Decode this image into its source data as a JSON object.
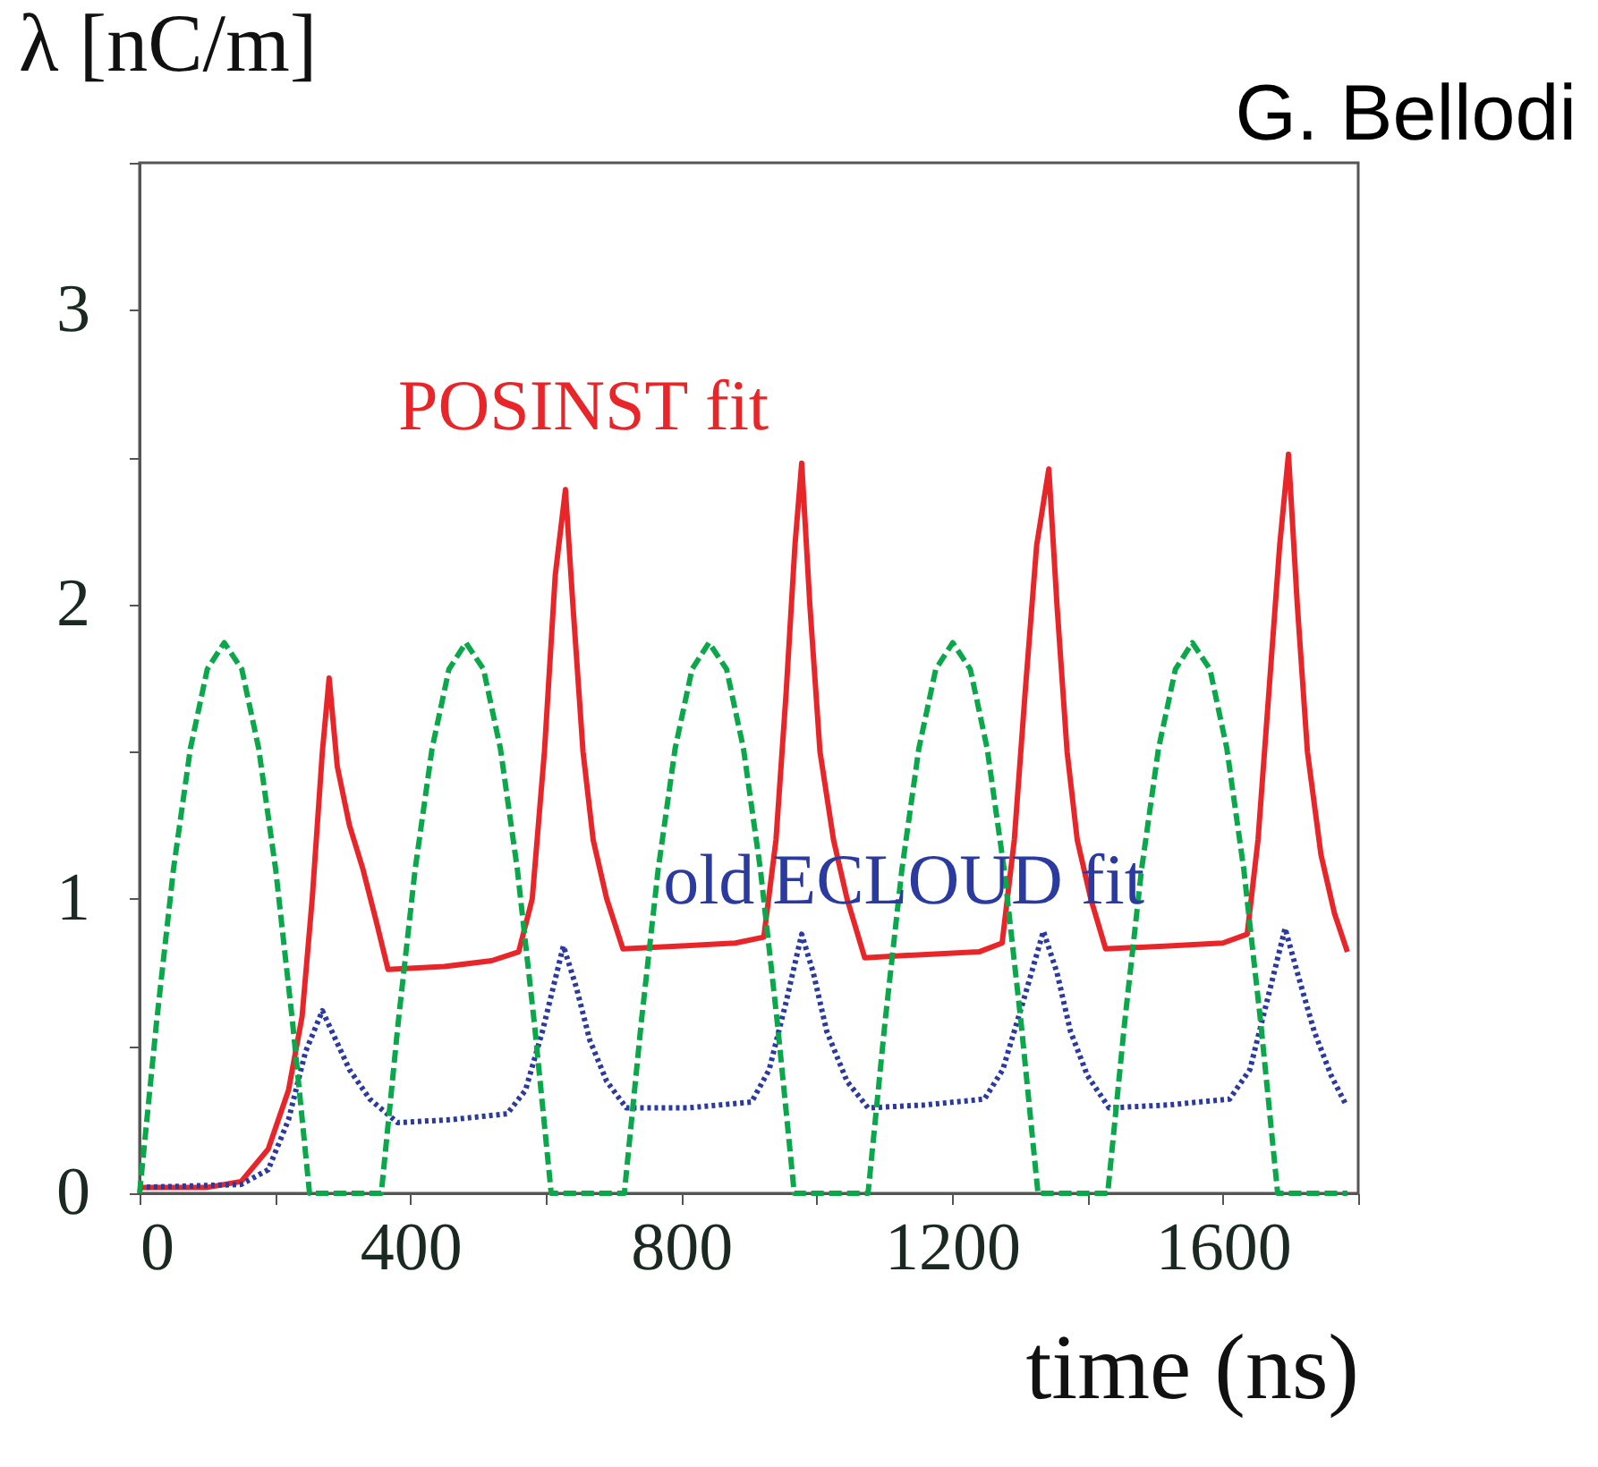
{
  "chart_data": {
    "type": "line",
    "xlabel": "time (ns)",
    "ylabel": "λ [nC/m]",
    "annotations": [
      "G. Bellodi"
    ],
    "xlim": [
      0,
      1800
    ],
    "ylim": [
      0,
      3.5
    ],
    "xticks": [
      0,
      {
        "value": 200,
        "label": null
      },
      400,
      {
        "value": 600,
        "label": null
      },
      800,
      {
        "value": 1000,
        "label": null
      },
      1200,
      {
        "value": 1400,
        "label": null
      },
      1600,
      {
        "value": 1800,
        "label": null
      }
    ],
    "yticks": [
      0,
      {
        "value": 0.5,
        "label": null
      },
      1,
      {
        "value": 1.5,
        "label": null
      },
      2,
      {
        "value": 2.5,
        "label": null
      },
      3,
      {
        "value": 3.5,
        "label": null
      }
    ],
    "grid": false,
    "marker": "none",
    "series": [
      {
        "name": "POSINST fit",
        "color": "#e8262a",
        "line_style": "solid",
        "x": [
          0,
          100,
          150,
          190,
          220,
          240,
          255,
          270,
          280,
          292,
          310,
          330,
          350,
          367,
          450,
          520,
          560,
          580,
          598,
          614,
          629,
          640,
          655,
          670,
          690,
          714,
          800,
          880,
          922,
          940,
          955,
          968,
          978,
          990,
          1005,
          1025,
          1045,
          1071,
          1150,
          1240,
          1274,
          1292,
          1308,
          1325,
          1343,
          1355,
          1370,
          1385,
          1405,
          1427,
          1520,
          1600,
          1636,
          1652,
          1668,
          1684,
          1697,
          1710,
          1725,
          1745,
          1765,
          1784
        ],
        "values": [
          0.02,
          0.02,
          0.04,
          0.15,
          0.35,
          0.6,
          1.0,
          1.5,
          1.75,
          1.45,
          1.25,
          1.1,
          0.92,
          0.76,
          0.77,
          0.79,
          0.82,
          1.0,
          1.5,
          2.1,
          2.39,
          2.0,
          1.5,
          1.2,
          1.0,
          0.83,
          0.84,
          0.85,
          0.87,
          1.2,
          1.7,
          2.2,
          2.48,
          2.0,
          1.5,
          1.2,
          1.0,
          0.8,
          0.81,
          0.82,
          0.85,
          1.2,
          1.7,
          2.2,
          2.46,
          2.0,
          1.5,
          1.2,
          1.0,
          0.83,
          0.84,
          0.85,
          0.88,
          1.2,
          1.7,
          2.2,
          2.51,
          2.0,
          1.5,
          1.15,
          0.95,
          0.82
        ]
      },
      {
        "name": "old ECLOUD fit",
        "color": "#2b3a9e",
        "line_style": "dotted",
        "x": [
          0,
          150,
          190,
          220,
          245,
          270,
          290,
          310,
          340,
          381,
          460,
          543,
          570,
          595,
          626,
          645,
          665,
          690,
          719,
          810,
          904,
          930,
          955,
          978,
          995,
          1015,
          1045,
          1076,
          1160,
          1248,
          1275,
          1305,
          1335,
          1355,
          1375,
          1400,
          1432,
          1520,
          1610,
          1640,
          1665,
          1692,
          1710,
          1735,
          1760,
          1782
        ],
        "values": [
          0.02,
          0.03,
          0.08,
          0.25,
          0.48,
          0.62,
          0.52,
          0.42,
          0.32,
          0.24,
          0.25,
          0.27,
          0.35,
          0.55,
          0.84,
          0.7,
          0.52,
          0.38,
          0.29,
          0.29,
          0.31,
          0.42,
          0.65,
          0.88,
          0.75,
          0.55,
          0.38,
          0.29,
          0.3,
          0.32,
          0.42,
          0.65,
          0.89,
          0.75,
          0.55,
          0.4,
          0.29,
          0.3,
          0.32,
          0.42,
          0.65,
          0.9,
          0.75,
          0.55,
          0.4,
          0.3
        ]
      },
      {
        "color": "#0aa84a",
        "line_style": "dashed",
        "x": [
          0,
          25,
          50,
          75,
          100,
          125,
          151,
          176,
          201,
          226,
          251,
          357,
          382,
          407,
          432,
          457,
          482,
          508,
          533,
          558,
          583,
          608,
          716,
          741,
          766,
          791,
          816,
          841,
          867,
          892,
          917,
          942,
          967,
          1076,
          1101,
          1126,
          1151,
          1176,
          1201,
          1227,
          1252,
          1277,
          1302,
          1327,
          1430,
          1455,
          1480,
          1505,
          1530,
          1555,
          1581,
          1606,
          1631,
          1656,
          1681,
          1784
        ],
        "values": [
          0,
          0.58,
          1.1,
          1.51,
          1.78,
          1.87,
          1.78,
          1.51,
          1.1,
          0.58,
          0,
          0,
          0.58,
          1.1,
          1.51,
          1.78,
          1.87,
          1.78,
          1.51,
          1.1,
          0.58,
          0,
          0,
          0.58,
          1.1,
          1.51,
          1.78,
          1.87,
          1.78,
          1.51,
          1.1,
          0.58,
          0,
          0,
          0.58,
          1.1,
          1.51,
          1.78,
          1.87,
          1.78,
          1.51,
          1.1,
          0.58,
          0,
          0,
          0.58,
          1.1,
          1.51,
          1.78,
          1.87,
          1.78,
          1.51,
          1.1,
          0.58,
          0,
          0
        ]
      }
    ]
  }
}
